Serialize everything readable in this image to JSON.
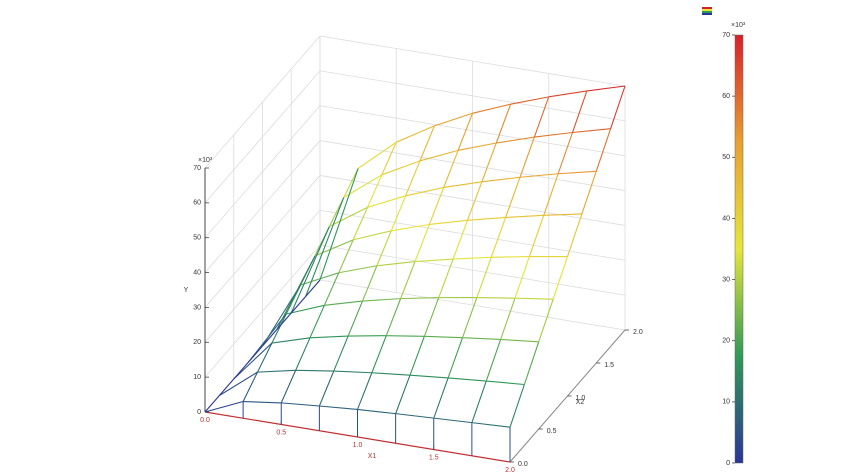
{
  "chart_data": {
    "type": "surface",
    "x1": [
      0,
      0.25,
      0.5,
      0.75,
      1,
      1.25,
      1.5,
      1.75,
      2
    ],
    "x2": [
      0,
      0.25,
      0.5,
      0.75,
      1,
      1.25,
      1.5,
      1.75,
      2
    ],
    "z": [
      [
        0,
        4.8,
        6.2,
        7.1,
        7.9,
        8.5,
        9.0,
        9.5,
        10
      ],
      [
        0,
        8.5,
        10.8,
        12.4,
        13.7,
        14.8,
        15.8,
        16.7,
        17.5
      ],
      [
        0,
        12.1,
        15.4,
        17.7,
        19.6,
        21.2,
        22.6,
        23.9,
        25
      ],
      [
        0,
        15.7,
        20.0,
        23.0,
        25.5,
        27.6,
        29.4,
        31.0,
        32.5
      ],
      [
        0,
        19.3,
        24.6,
        28.4,
        31.4,
        33.9,
        36.2,
        38.2,
        40
      ],
      [
        0,
        22.9,
        29.3,
        33.7,
        37.3,
        40.3,
        42.9,
        45.3,
        47.5
      ],
      [
        0,
        26.6,
        33.9,
        39.0,
        43.2,
        46.6,
        49.7,
        52.5,
        55
      ],
      [
        0,
        30.2,
        38.5,
        44.3,
        49.1,
        53.0,
        56.5,
        59.6,
        62.5
      ],
      [
        0,
        33.8,
        43.1,
        49.6,
        55.0,
        59.4,
        63.3,
        66.8,
        70
      ]
    ],
    "xlabel": "X1",
    "ylabel": "X2",
    "zlabel": "Y",
    "xlim": [
      0,
      2
    ],
    "ylim": [
      0,
      2
    ],
    "zlim": [
      0,
      70
    ],
    "xticks": [
      {
        "value": 0,
        "label": "0.0"
      },
      0.5,
      {
        "value": 1,
        "label": "1.0"
      },
      1.5,
      {
        "value": 2,
        "label": "2.0"
      }
    ],
    "yticks": [
      {
        "value": 0,
        "label": "0.0"
      },
      0.5,
      {
        "value": 1,
        "label": "1.0"
      },
      1.5,
      {
        "value": 2,
        "label": "2.0"
      }
    ],
    "zticks": [
      0,
      10,
      20,
      30,
      40,
      50,
      60,
      70
    ],
    "multiplier_label": "×10³",
    "grid": true,
    "colormap": [
      "#2a3598",
      "#2f9a55",
      "#e6e63a",
      "#e8a030",
      "#d8202a"
    ],
    "colorbar": {
      "lim": [
        0,
        70
      ],
      "ticks": [
        0,
        10,
        20,
        30,
        40,
        50,
        60,
        70
      ]
    }
  }
}
